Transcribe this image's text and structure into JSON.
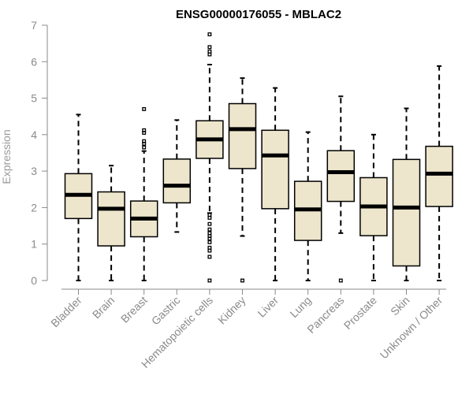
{
  "chart_data": {
    "type": "boxplot",
    "title": "ENSG00000176055 - MBLAC2",
    "xlabel": "",
    "ylabel": "Expression",
    "ylim": [
      0,
      7
    ],
    "yticks": [
      0,
      1,
      2,
      3,
      4,
      5,
      6,
      7
    ],
    "box_color": "#EDE6CC",
    "categories": [
      "Bladder",
      "Brain",
      "Breast",
      "Gastric",
      "Hematopoietic cells",
      "Kidney",
      "Liver",
      "Lung",
      "Pancreas",
      "Prostate",
      "Skin",
      "Unknown / Other"
    ],
    "boxes": [
      {
        "min": 0,
        "q1": 1.7,
        "median": 2.35,
        "q3": 2.93,
        "max": 4.55,
        "outliers": []
      },
      {
        "min": 0,
        "q1": 0.95,
        "median": 1.97,
        "q3": 2.43,
        "max": 3.15,
        "outliers": []
      },
      {
        "min": 0,
        "q1": 1.2,
        "median": 1.7,
        "q3": 2.18,
        "max": 3.55,
        "outliers": [
          3.65,
          3.75,
          3.82,
          4.05,
          4.12,
          4.7
        ]
      },
      {
        "min": 1.33,
        "q1": 2.13,
        "median": 2.6,
        "q3": 3.33,
        "max": 4.4,
        "outliers": []
      },
      {
        "min": 1.85,
        "q1": 3.35,
        "median": 3.87,
        "q3": 4.38,
        "max": 5.92,
        "outliers": [
          6.2,
          6.28,
          6.4,
          6.75,
          1.8,
          1.72,
          1.55,
          1.4,
          1.3,
          1.22,
          1.15,
          1.05,
          0.9,
          0.82,
          0.65,
          0
        ]
      },
      {
        "min": 1.22,
        "q1": 3.07,
        "median": 4.15,
        "q3": 4.85,
        "max": 5.55,
        "outliers": [
          0
        ]
      },
      {
        "min": 0,
        "q1": 1.97,
        "median": 3.43,
        "q3": 4.12,
        "max": 5.28,
        "outliers": []
      },
      {
        "min": 0,
        "q1": 1.1,
        "median": 1.95,
        "q3": 2.72,
        "max": 4.07,
        "outliers": []
      },
      {
        "min": 1.3,
        "q1": 2.17,
        "median": 2.97,
        "q3": 3.56,
        "max": 5.05,
        "outliers": [
          0
        ]
      },
      {
        "min": 0,
        "q1": 1.23,
        "median": 2.03,
        "q3": 2.82,
        "max": 4.0,
        "outliers": []
      },
      {
        "min": 0,
        "q1": 0.4,
        "median": 2.0,
        "q3": 3.32,
        "max": 4.72,
        "outliers": []
      },
      {
        "min": 0,
        "q1": 2.03,
        "median": 2.93,
        "q3": 3.68,
        "max": 5.88,
        "outliers": []
      }
    ]
  }
}
